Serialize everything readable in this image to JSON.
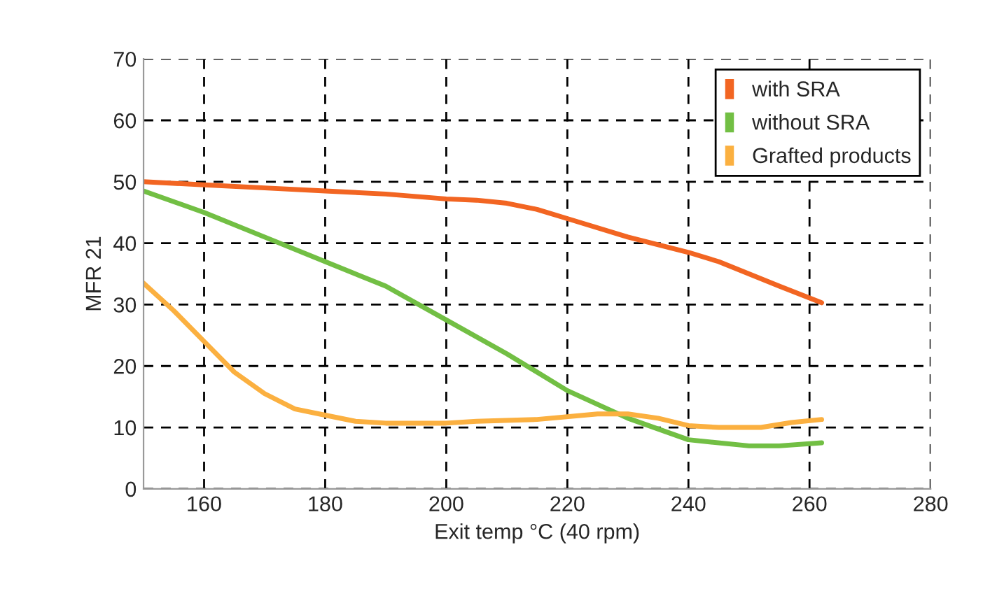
{
  "chart_data": {
    "type": "line",
    "xlabel": "Exit temp °C (40 rpm)",
    "ylabel": "MFR 21",
    "xlim": [
      150,
      280
    ],
    "xticks": [
      160,
      180,
      200,
      220,
      240,
      260,
      280
    ],
    "ylim": [
      0,
      70
    ],
    "yticks": [
      0,
      10,
      20,
      30,
      40,
      50,
      60,
      70
    ],
    "grid": true,
    "legend": "top right",
    "marker": "none",
    "line_style": "solid",
    "series": [
      {
        "name": "with SRA",
        "color": "#f26522",
        "x": [
          150,
          160,
          170,
          180,
          190,
          200,
          205,
          210,
          215,
          220,
          230,
          240,
          245,
          250,
          255,
          262
        ],
        "values": [
          50,
          49.5,
          49,
          48.5,
          48,
          47.2,
          47,
          46.5,
          45.5,
          44,
          41,
          38.5,
          37,
          35,
          33,
          30.3
        ]
      },
      {
        "name": "without SRA",
        "color": "#72bf44",
        "x": [
          150,
          160,
          170,
          180,
          190,
          200,
          210,
          220,
          230,
          240,
          250,
          255,
          262
        ],
        "values": [
          48.5,
          45,
          41,
          37,
          33,
          27.5,
          22,
          16,
          11.5,
          8,
          7,
          7,
          7.5
        ]
      },
      {
        "name": "Grafted products",
        "color": "#fbb040",
        "x": [
          150,
          155,
          160,
          165,
          170,
          175,
          180,
          185,
          190,
          200,
          205,
          215,
          225,
          230,
          235,
          240,
          245,
          252,
          257,
          262
        ],
        "values": [
          33.5,
          29,
          24,
          19,
          15.5,
          13,
          12,
          11,
          10.7,
          10.7,
          11,
          11.3,
          12.2,
          12.2,
          11.5,
          10.3,
          10,
          10,
          10.8,
          11.3
        ]
      }
    ]
  }
}
